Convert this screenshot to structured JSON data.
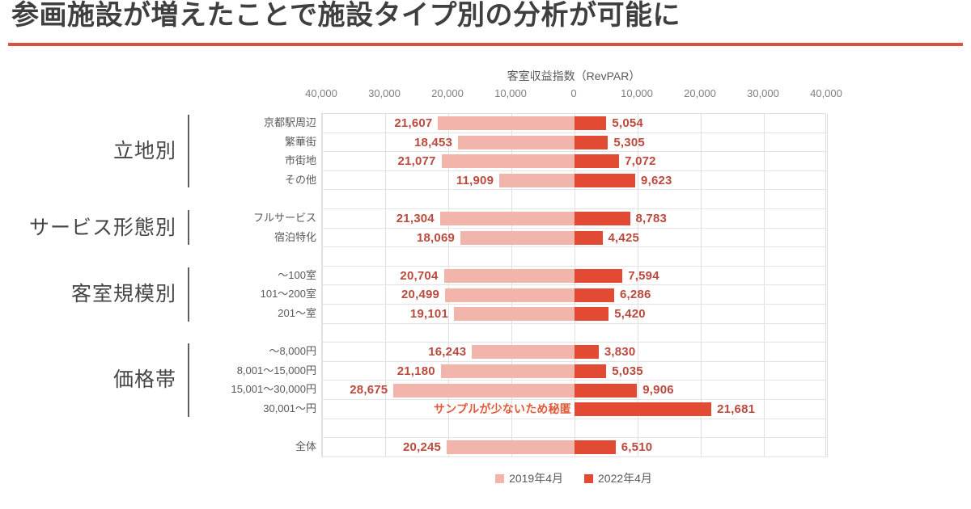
{
  "title": "参画施設が増えたことで施設タイプ別の分析が可能に",
  "theme": {
    "accent_rule": "#d9503e",
    "title_color": "#3f3f3f",
    "value_label_color": "#bb4a3d",
    "secret_label_color": "#e05a3a",
    "gridline_color": "#e0e0e0"
  },
  "chart_data": {
    "type": "bar",
    "variant": "diverging-horizontal",
    "title": "客室収益指数（RevPAR）",
    "xlim": [
      -40000,
      40000
    ],
    "grid": true,
    "legend_position": "bottom",
    "axis": {
      "max": 40000,
      "tick_step": 10000,
      "tick_labels": [
        "40,000",
        "30,000",
        "20,000",
        "10,000",
        "0",
        "10,000",
        "20,000",
        "30,000",
        "40,000"
      ]
    },
    "series": [
      {
        "name": "2019年4月",
        "color": "#f2b5ab"
      },
      {
        "name": "2022年4月",
        "color": "#e24a33"
      }
    ],
    "secret_note": "サンプルが少ないため秘匿",
    "groups": [
      {
        "label": "立地別",
        "rows": [
          {
            "label": "京都駅周辺",
            "v2019": 21607,
            "v2022": 5054
          },
          {
            "label": "繁華街",
            "v2019": 18453,
            "v2022": 5305
          },
          {
            "label": "市街地",
            "v2019": 21077,
            "v2022": 7072
          },
          {
            "label": "その他",
            "v2019": 11909,
            "v2022": 9623
          }
        ]
      },
      {
        "label": "サービス形態別",
        "rows": [
          {
            "label": "フルサービス",
            "v2019": 21304,
            "v2022": 8783
          },
          {
            "label": "宿泊特化",
            "v2019": 18069,
            "v2022": 4425
          }
        ]
      },
      {
        "label": "客室規模別",
        "rows": [
          {
            "label": "～100室",
            "v2019": 20704,
            "v2022": 7594
          },
          {
            "label": "101～200室",
            "v2019": 20499,
            "v2022": 6286
          },
          {
            "label": "201～室",
            "v2019": 19101,
            "v2022": 5420
          }
        ]
      },
      {
        "label": "価格帯",
        "rows": [
          {
            "label": "～8,000円",
            "v2019": 16243,
            "v2022": 3830
          },
          {
            "label": "8,001～15,000円",
            "v2019": 21180,
            "v2022": 5035
          },
          {
            "label": "15,001～30,000円",
            "v2019": 28675,
            "v2022": 9906
          },
          {
            "label": "30,001～円",
            "v2019": null,
            "secret": true,
            "v2022": 21681
          }
        ]
      },
      {
        "label": "",
        "rows": [
          {
            "label": "全体",
            "v2019": 20245,
            "v2022": 6510
          }
        ]
      }
    ]
  },
  "legend": {
    "items": [
      "2019年4月",
      "2022年4月"
    ]
  }
}
